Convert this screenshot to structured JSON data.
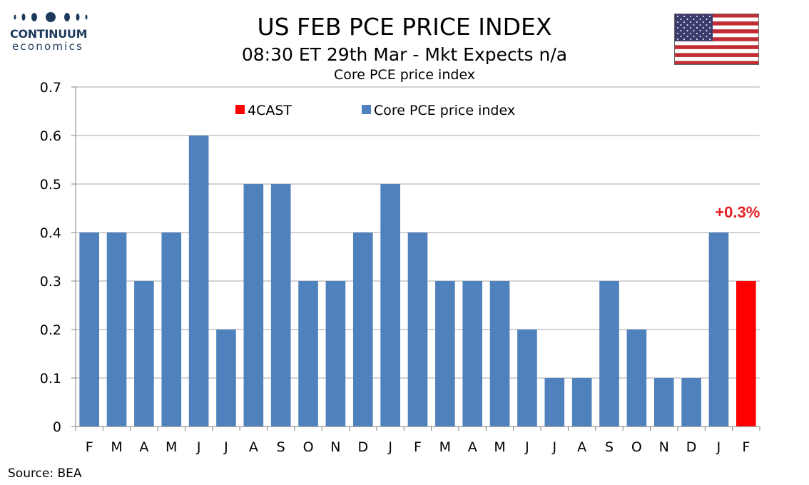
{
  "header": {
    "logo_name": "CONTINUUM",
    "logo_sub": "economics",
    "title": "US FEB PCE PRICE INDEX",
    "subtitle": "08:30 ET 29th Mar - Mkt Expects n/a",
    "flag_icon": "us-flag-icon"
  },
  "source": "Source: BEA",
  "colors": {
    "history": "#4f81bd",
    "forecast": "#ff0000",
    "forecast_label": "#e31e24",
    "grid": "#a6a6a6",
    "logo": "#1f3a5c"
  },
  "chart_data": {
    "type": "bar",
    "title": "Core PCE price index",
    "categories": [
      "F",
      "M",
      "A",
      "M",
      "J",
      "J",
      "A",
      "S",
      "O",
      "N",
      "D",
      "J",
      "F",
      "M",
      "A",
      "M",
      "J",
      "J",
      "A",
      "S",
      "O",
      "N",
      "D",
      "J",
      "F"
    ],
    "series": [
      {
        "name": "Core PCE price index",
        "values": [
          0.4,
          0.4,
          0.3,
          0.4,
          0.6,
          0.2,
          0.5,
          0.5,
          0.3,
          0.3,
          0.4,
          0.5,
          0.4,
          0.3,
          0.3,
          0.3,
          0.2,
          0.1,
          0.1,
          0.3,
          0.2,
          0.1,
          0.1,
          0.4,
          null
        ]
      },
      {
        "name": "4CAST",
        "values": [
          null,
          null,
          null,
          null,
          null,
          null,
          null,
          null,
          null,
          null,
          null,
          null,
          null,
          null,
          null,
          null,
          null,
          null,
          null,
          null,
          null,
          null,
          null,
          null,
          0.3
        ]
      }
    ],
    "ylim": [
      0,
      0.7
    ],
    "yticks": [
      "0",
      "0.1",
      "0.2",
      "0.3",
      "0.4",
      "0.5",
      "0.6",
      "0.7"
    ],
    "grid": true,
    "legend": [
      "4CAST",
      "Core PCE price index"
    ],
    "legend_position": "top-center",
    "annotation": "+0.3%"
  }
}
